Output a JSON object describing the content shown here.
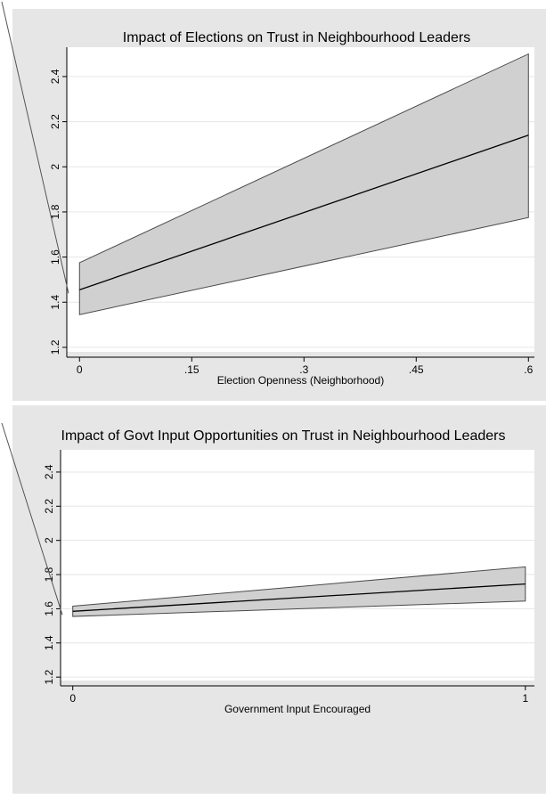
{
  "chart_data": [
    {
      "type": "line",
      "title": "Impact of Elections on Trust in Neighbourhood Leaders",
      "xlabel": "Election Openness (Neighborhood)",
      "ylabel": "",
      "xlim": [
        -0.017,
        0.608
      ],
      "ylim": [
        1.18,
        2.53
      ],
      "x_ticks": [
        0,
        0.15,
        0.3,
        0.45,
        0.6
      ],
      "x_tick_labels": [
        "0",
        ".15",
        ".3",
        ".45",
        ".6"
      ],
      "y_ticks": [
        1.2,
        1.4,
        1.6,
        1.8,
        2.0,
        2.2,
        2.4
      ],
      "y_tick_labels": [
        "1.2",
        "1.4",
        "1.6",
        "1.8",
        "2",
        "2.2",
        "2.4"
      ],
      "grid": true,
      "series": [
        {
          "x": [
            0,
            0.6
          ],
          "y": [
            1.455,
            2.14
          ],
          "lower": [
            1.345,
            1.775
          ],
          "upper": [
            1.575,
            2.5
          ]
        }
      ],
      "colors": {
        "band_fill": "#d0d0d0",
        "band_edge": "#4a4a4a",
        "line": "#000000",
        "grid": "#e6e6e6",
        "outer": "#e6e6e6"
      }
    },
    {
      "type": "line",
      "title": "Impact of Govt Input Opportunities on Trust in Neighbourhood Leaders",
      "xlabel": "Government Input Encouraged",
      "ylabel": "",
      "xlim": [
        -0.027,
        1.02
      ],
      "ylim": [
        1.18,
        2.53
      ],
      "x_ticks": [
        0,
        1
      ],
      "x_tick_labels": [
        "0",
        "1"
      ],
      "y_ticks": [
        1.2,
        1.4,
        1.6,
        1.8,
        2.0,
        2.2,
        2.4
      ],
      "y_tick_labels": [
        "1.2",
        "1.4",
        "1.6",
        "1.8",
        "2",
        "2.2",
        "2.4"
      ],
      "grid": true,
      "series": [
        {
          "x": [
            0,
            1
          ],
          "y": [
            1.585,
            1.745
          ],
          "lower": [
            1.555,
            1.645
          ],
          "upper": [
            1.615,
            1.845
          ]
        }
      ],
      "colors": {
        "band_fill": "#d0d0d0",
        "band_edge": "#4a4a4a",
        "line": "#000000",
        "grid": "#e6e6e6",
        "outer": "#e6e6e6"
      }
    }
  ]
}
